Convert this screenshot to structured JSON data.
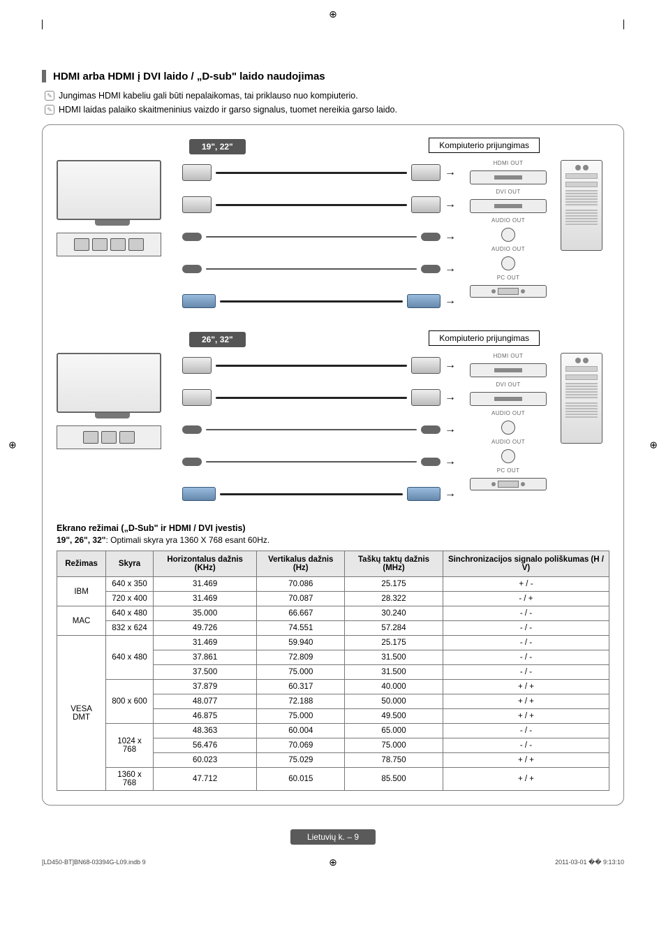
{
  "section": {
    "title": "HDMI arba HDMI į DVI laido / „D-sub\" laido naudojimas"
  },
  "notes": {
    "n1": "Jungimas HDMI kabeliu gali būti nepalaikomas, tai priklauso nuo kompiuterio.",
    "n2": "HDMI laidas palaiko skaitmeninius vaizdo ir garso signalus, tuomet nereikia garso laido."
  },
  "diagram": {
    "group1_size": "19\", 22\"",
    "group2_size": "26\", 32\"",
    "conn_title": "Kompiuterio prijungimas",
    "ports": {
      "hdmi": "HDMI OUT",
      "dvi": "DVI OUT",
      "audio": "AUDIO OUT",
      "pc": "PC OUT"
    }
  },
  "modes": {
    "caption": "Ekrano režimai („D-Sub\" ir HDMI / DVI įvestis)",
    "subtitle_prefix": "19\", 26\", 32\"",
    "subtitle_rest": ": Optimali skyra yra 1360 X 768 esant 60Hz.",
    "headers": {
      "mode": "Režimas",
      "res": "Skyra",
      "hfreq": "Horizontalus dažnis (KHz)",
      "vfreq": "Vertikalus dažnis (Hz)",
      "pclk": "Taškų taktų dažnis (MHz)",
      "sync": "Sinchronizacijos signalo poliškumas (H / V)"
    },
    "groups": [
      {
        "name": "IBM",
        "rows": [
          {
            "res": "640 x 350",
            "h": "31.469",
            "v": "70.086",
            "p": "25.175",
            "s": "+ / -"
          },
          {
            "res": "720 x 400",
            "h": "31.469",
            "v": "70.087",
            "p": "28.322",
            "s": "- / +"
          }
        ]
      },
      {
        "name": "MAC",
        "rows": [
          {
            "res": "640 x 480",
            "h": "35.000",
            "v": "66.667",
            "p": "30.240",
            "s": "- / -"
          },
          {
            "res": "832 x 624",
            "h": "49.726",
            "v": "74.551",
            "p": "57.284",
            "s": "- / -"
          }
        ]
      },
      {
        "name": "VESA DMT",
        "rows": [
          {
            "res": "640 x 480",
            "span": 3,
            "h": "31.469",
            "v": "59.940",
            "p": "25.175",
            "s": "- / -"
          },
          {
            "h": "37.861",
            "v": "72.809",
            "p": "31.500",
            "s": "- / -"
          },
          {
            "h": "37.500",
            "v": "75.000",
            "p": "31.500",
            "s": "- / -"
          },
          {
            "res": "800 x 600",
            "span": 3,
            "h": "37.879",
            "v": "60.317",
            "p": "40.000",
            "s": "+ / +"
          },
          {
            "h": "48.077",
            "v": "72.188",
            "p": "50.000",
            "s": "+ / +"
          },
          {
            "h": "46.875",
            "v": "75.000",
            "p": "49.500",
            "s": "+ / +"
          },
          {
            "res": "1024 x 768",
            "span": 3,
            "h": "48.363",
            "v": "60.004",
            "p": "65.000",
            "s": "- / -"
          },
          {
            "h": "56.476",
            "v": "70.069",
            "p": "75.000",
            "s": "- / -"
          },
          {
            "h": "60.023",
            "v": "75.029",
            "p": "78.750",
            "s": "+ / +"
          },
          {
            "res": "1360 x 768",
            "span": 1,
            "h": "47.712",
            "v": "60.015",
            "p": "85.500",
            "s": "+ / +"
          }
        ]
      }
    ]
  },
  "footer": {
    "page": "Lietuvių k. – 9"
  },
  "print": {
    "left": "[LD450-BT]BN68-03394G-L09.indb   9",
    "right": "2011-03-01   �� 9:13:10"
  }
}
